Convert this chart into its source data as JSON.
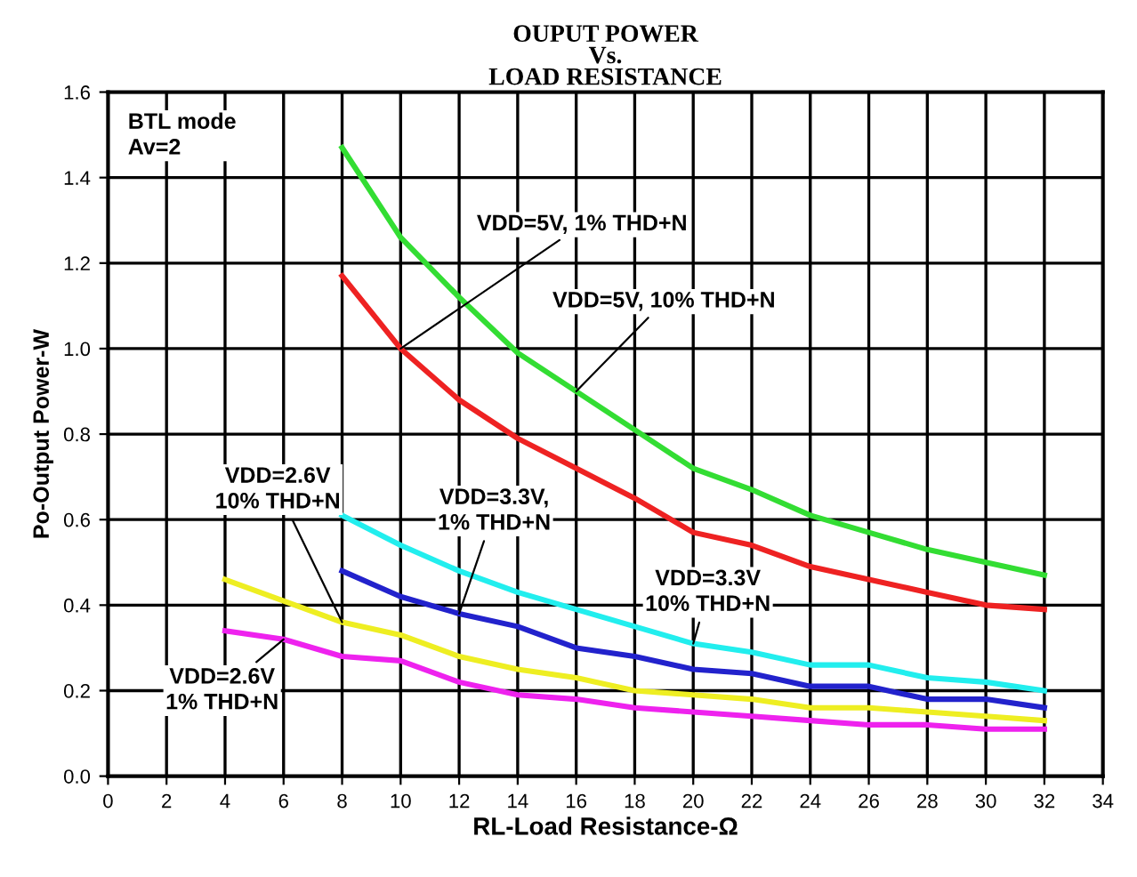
{
  "chart_data": {
    "type": "line",
    "title": "OUPUT POWER\nVs.\nLOAD RESISTANCE",
    "xlabel": "RL-Load Resistance-Ω",
    "ylabel": "Po-Output Power-W",
    "annotations": [
      "BTL mode\nAv=2"
    ],
    "xlim": [
      0,
      34
    ],
    "xticks": [
      0,
      2,
      4,
      6,
      8,
      10,
      12,
      14,
      16,
      18,
      20,
      22,
      24,
      26,
      28,
      30,
      32,
      34
    ],
    "ylim": [
      0,
      1.6
    ],
    "yticks": [
      {
        "value": 0,
        "label": "0.0"
      },
      0.2,
      0.4,
      0.6,
      0.8,
      {
        "value": 1,
        "label": "1.0"
      },
      1.2,
      1.4,
      1.6
    ],
    "grid": true,
    "legend": false,
    "marker": "none",
    "line_style": "solid",
    "series": [
      {
        "name": "VDD=5V, 1% THD+N",
        "color": "#ee2222",
        "x": [
          8,
          10,
          12,
          14,
          16,
          18,
          20,
          22,
          24,
          26,
          28,
          30,
          32
        ],
        "values": [
          1.17,
          1.0,
          0.88,
          0.79,
          0.72,
          0.65,
          0.57,
          0.54,
          0.49,
          0.46,
          0.43,
          0.4,
          0.39
        ]
      },
      {
        "name": "VDD=5V, 10% THD+N",
        "color": "#33dd33",
        "x": [
          8,
          10,
          12,
          14,
          16,
          18,
          20,
          22,
          24,
          26,
          28,
          30,
          32
        ],
        "values": [
          1.47,
          1.26,
          1.12,
          0.99,
          0.9,
          0.81,
          0.72,
          0.67,
          0.61,
          0.57,
          0.53,
          0.5,
          0.47
        ]
      },
      {
        "name": "VDD=3.3V,\n1% THD+N",
        "color": "#2222cc",
        "x": [
          8,
          10,
          12,
          14,
          16,
          18,
          20,
          22,
          24,
          26,
          28,
          30,
          32
        ],
        "values": [
          0.48,
          0.42,
          0.38,
          0.35,
          0.3,
          0.28,
          0.25,
          0.24,
          0.21,
          0.21,
          0.18,
          0.18,
          0.16
        ]
      },
      {
        "name": "VDD=3.3V\n10% THD+N",
        "color": "#22eeee",
        "x": [
          8,
          10,
          12,
          14,
          16,
          18,
          20,
          22,
          24,
          26,
          28,
          30,
          32
        ],
        "values": [
          0.61,
          0.54,
          0.48,
          0.43,
          0.39,
          0.35,
          0.31,
          0.29,
          0.26,
          0.26,
          0.23,
          0.22,
          0.2
        ]
      },
      {
        "name": "VDD=2.6V\n10% THD+N",
        "color": "#eeee22",
        "x": [
          4,
          6,
          8,
          10,
          12,
          14,
          16,
          18,
          20,
          22,
          24,
          26,
          28,
          30,
          32
        ],
        "values": [
          0.46,
          0.41,
          0.36,
          0.33,
          0.28,
          0.25,
          0.23,
          0.2,
          0.19,
          0.18,
          0.16,
          0.16,
          0.15,
          0.14,
          0.13
        ]
      },
      {
        "name": "VDD=2.6V\n1% THD+N",
        "color": "#ee22ee",
        "x": [
          4,
          6,
          8,
          10,
          12,
          14,
          16,
          18,
          20,
          22,
          24,
          26,
          28,
          30,
          32
        ],
        "values": [
          0.34,
          0.32,
          0.28,
          0.27,
          0.22,
          0.19,
          0.18,
          0.16,
          0.15,
          0.14,
          0.13,
          0.12,
          0.12,
          0.11,
          0.11
        ]
      }
    ]
  }
}
